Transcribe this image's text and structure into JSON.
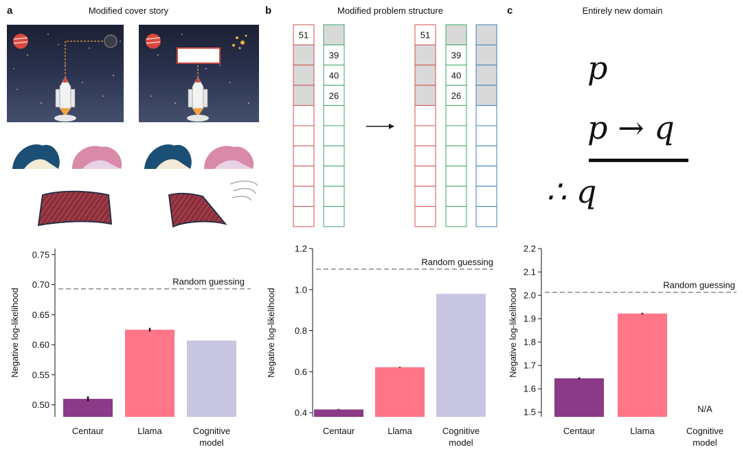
{
  "panels": [
    {
      "label": "a",
      "title": "Modified cover story"
    },
    {
      "label": "b",
      "title": "Modified problem structure"
    },
    {
      "label": "c",
      "title": "Entirely new domain"
    }
  ],
  "illustration_b": {
    "numbers_red": [
      "51"
    ],
    "numbers_green": [
      "39",
      "40",
      "26"
    ]
  },
  "logic": {
    "premise1": "p",
    "premise2": "p → q",
    "conclusion": "∴ q"
  },
  "colors": {
    "centaur": "#8a3a86",
    "llama": "#ff7688",
    "cognitive": "#c8c6e2",
    "random": "#888888"
  },
  "chart_data": [
    {
      "type": "bar",
      "categories": [
        "Centaur",
        "Llama",
        "Cognitive\nmodel"
      ],
      "values": [
        0.51,
        0.625,
        0.607
      ],
      "errors": [
        0.004,
        0.003,
        0
      ],
      "ylim": [
        0.48,
        0.76
      ],
      "yticks": [
        "0.50",
        "0.55",
        "0.60",
        "0.65",
        "0.70",
        "0.75"
      ],
      "ylabel": "Negative log-likelihood",
      "reference_line": {
        "label": "Random guessing",
        "value": 0.693
      }
    },
    {
      "type": "bar",
      "categories": [
        "Centaur",
        "Llama",
        "Cognitive\nmodel"
      ],
      "values": [
        0.416,
        0.622,
        0.98
      ],
      "errors": [
        0.002,
        0.002,
        0
      ],
      "ylim": [
        0.38,
        1.2
      ],
      "yticks": [
        "0.4",
        "0.6",
        "0.8",
        "1.0",
        "1.2"
      ],
      "ylabel": "Negative log-likelihood",
      "reference_line": {
        "label": "Random guessing",
        "value": 1.1
      }
    },
    {
      "type": "bar",
      "categories": [
        "Centaur",
        "Llama",
        "Cognitive\nmodel"
      ],
      "values": [
        1.645,
        1.922,
        null
      ],
      "errors": [
        0.004,
        0.003,
        0
      ],
      "ylim": [
        1.48,
        2.2
      ],
      "yticks": [
        "1.5",
        "1.6",
        "1.7",
        "1.8",
        "1.9",
        "2.0",
        "2.1",
        "2.2"
      ],
      "ylabel": "Negative log-likelihood",
      "reference_line": {
        "label": "Random guessing",
        "value": 2.013
      },
      "missing_label": "N/A"
    }
  ]
}
